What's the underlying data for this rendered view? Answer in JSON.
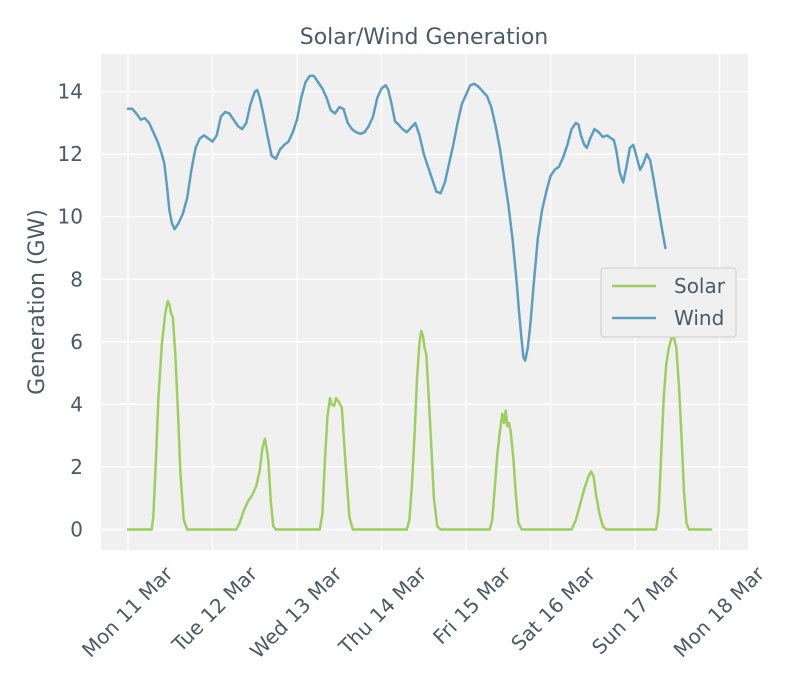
{
  "chart_data": {
    "type": "line",
    "title": "Solar/Wind Generation",
    "xlabel": "",
    "ylabel": "Generation (GW)",
    "xlim": [
      -0.3,
      7.4
    ],
    "ylim": [
      -0.7,
      15.2
    ],
    "yticks": [
      0,
      2,
      4,
      6,
      8,
      10,
      12,
      14
    ],
    "xticks": [
      {
        "x": 0,
        "label": "Mon 11 Mar"
      },
      {
        "x": 1,
        "label": "Tue 12 Mar"
      },
      {
        "x": 2,
        "label": "Wed 13 Mar"
      },
      {
        "x": 3,
        "label": "Thu 14 Mar"
      },
      {
        "x": 4,
        "label": "Fri 15 Mar"
      },
      {
        "x": 5,
        "label": "Sat 16 Mar"
      },
      {
        "x": 6,
        "label": "Sun 17 Mar"
      },
      {
        "x": 7,
        "label": "Mon 18 Mar"
      }
    ],
    "grid": true,
    "legend_position": "center-right",
    "series": [
      {
        "name": "Solar",
        "color": "#9ccf5e",
        "points": [
          [
            0,
            0
          ],
          [
            0.28,
            0
          ],
          [
            0.3,
            0.4
          ],
          [
            0.33,
            2.2
          ],
          [
            0.36,
            4.2
          ],
          [
            0.4,
            5.9
          ],
          [
            0.44,
            6.9
          ],
          [
            0.47,
            7.3
          ],
          [
            0.49,
            7.2
          ],
          [
            0.51,
            6.9
          ],
          [
            0.53,
            6.8
          ],
          [
            0.56,
            5.6
          ],
          [
            0.59,
            3.8
          ],
          [
            0.62,
            1.8
          ],
          [
            0.66,
            0.3
          ],
          [
            0.7,
            0
          ],
          [
            1.28,
            0
          ],
          [
            1.32,
            0.2
          ],
          [
            1.37,
            0.6
          ],
          [
            1.42,
            0.9
          ],
          [
            1.47,
            1.1
          ],
          [
            1.52,
            1.4
          ],
          [
            1.56,
            1.9
          ],
          [
            1.59,
            2.6
          ],
          [
            1.62,
            2.9
          ],
          [
            1.64,
            2.6
          ],
          [
            1.66,
            2.2
          ],
          [
            1.69,
            0.9
          ],
          [
            1.72,
            0.1
          ],
          [
            1.75,
            0
          ],
          [
            2.27,
            0
          ],
          [
            2.3,
            0.5
          ],
          [
            2.33,
            2.2
          ],
          [
            2.36,
            3.6
          ],
          [
            2.39,
            4.2
          ],
          [
            2.41,
            4.0
          ],
          [
            2.44,
            3.95
          ],
          [
            2.46,
            4.2
          ],
          [
            2.49,
            4.1
          ],
          [
            2.53,
            3.9
          ],
          [
            2.56,
            2.7
          ],
          [
            2.59,
            1.5
          ],
          [
            2.62,
            0.4
          ],
          [
            2.66,
            0
          ],
          [
            3.3,
            0
          ],
          [
            3.33,
            0.3
          ],
          [
            3.36,
            1.4
          ],
          [
            3.39,
            3.0
          ],
          [
            3.42,
            4.8
          ],
          [
            3.45,
            6.0
          ],
          [
            3.47,
            6.35
          ],
          [
            3.49,
            6.2
          ],
          [
            3.51,
            5.8
          ],
          [
            3.53,
            5.6
          ],
          [
            3.56,
            4.2
          ],
          [
            3.59,
            2.6
          ],
          [
            3.62,
            1.0
          ],
          [
            3.66,
            0.1
          ],
          [
            3.7,
            0
          ],
          [
            4.28,
            0
          ],
          [
            4.31,
            0.3
          ],
          [
            4.34,
            1.3
          ],
          [
            4.37,
            2.4
          ],
          [
            4.4,
            3.1
          ],
          [
            4.43,
            3.7
          ],
          [
            4.45,
            3.4
          ],
          [
            4.47,
            3.8
          ],
          [
            4.49,
            3.3
          ],
          [
            4.51,
            3.4
          ],
          [
            4.53,
            3.1
          ],
          [
            4.56,
            2.3
          ],
          [
            4.59,
            1.1
          ],
          [
            4.62,
            0.2
          ],
          [
            4.66,
            0
          ],
          [
            5.25,
            0
          ],
          [
            5.3,
            0.3
          ],
          [
            5.35,
            0.8
          ],
          [
            5.4,
            1.3
          ],
          [
            5.45,
            1.7
          ],
          [
            5.48,
            1.85
          ],
          [
            5.51,
            1.7
          ],
          [
            5.54,
            1.1
          ],
          [
            5.58,
            0.5
          ],
          [
            5.62,
            0.1
          ],
          [
            5.66,
            0
          ],
          [
            6.25,
            0
          ],
          [
            6.28,
            0.6
          ],
          [
            6.31,
            2.4
          ],
          [
            6.34,
            4.2
          ],
          [
            6.37,
            5.3
          ],
          [
            6.4,
            5.8
          ],
          [
            6.43,
            6.1
          ],
          [
            6.46,
            6.15
          ],
          [
            6.49,
            5.8
          ],
          [
            6.52,
            4.6
          ],
          [
            6.55,
            3.0
          ],
          [
            6.58,
            1.2
          ],
          [
            6.61,
            0.2
          ],
          [
            6.64,
            0
          ],
          [
            6.9,
            0
          ]
        ]
      },
      {
        "name": "Wind",
        "color": "#5b9ec1",
        "points": [
          [
            0,
            13.45
          ],
          [
            0.05,
            13.45
          ],
          [
            0.1,
            13.3
          ],
          [
            0.15,
            13.1
          ],
          [
            0.2,
            13.15
          ],
          [
            0.25,
            13.0
          ],
          [
            0.3,
            12.7
          ],
          [
            0.35,
            12.4
          ],
          [
            0.4,
            12.0
          ],
          [
            0.43,
            11.7
          ],
          [
            0.46,
            11.0
          ],
          [
            0.49,
            10.2
          ],
          [
            0.52,
            9.8
          ],
          [
            0.55,
            9.6
          ],
          [
            0.6,
            9.8
          ],
          [
            0.65,
            10.1
          ],
          [
            0.7,
            10.6
          ],
          [
            0.75,
            11.5
          ],
          [
            0.8,
            12.2
          ],
          [
            0.85,
            12.5
          ],
          [
            0.9,
            12.6
          ],
          [
            0.95,
            12.5
          ],
          [
            1.0,
            12.4
          ],
          [
            1.05,
            12.6
          ],
          [
            1.1,
            13.2
          ],
          [
            1.15,
            13.35
          ],
          [
            1.2,
            13.3
          ],
          [
            1.25,
            13.1
          ],
          [
            1.3,
            12.9
          ],
          [
            1.35,
            12.8
          ],
          [
            1.4,
            13.0
          ],
          [
            1.45,
            13.6
          ],
          [
            1.5,
            14.0
          ],
          [
            1.53,
            14.05
          ],
          [
            1.56,
            13.8
          ],
          [
            1.6,
            13.3
          ],
          [
            1.65,
            12.6
          ],
          [
            1.7,
            11.95
          ],
          [
            1.75,
            11.85
          ],
          [
            1.8,
            12.15
          ],
          [
            1.85,
            12.3
          ],
          [
            1.9,
            12.4
          ],
          [
            1.95,
            12.7
          ],
          [
            2.0,
            13.1
          ],
          [
            2.05,
            13.8
          ],
          [
            2.1,
            14.3
          ],
          [
            2.15,
            14.5
          ],
          [
            2.2,
            14.5
          ],
          [
            2.25,
            14.3
          ],
          [
            2.3,
            14.1
          ],
          [
            2.35,
            13.8
          ],
          [
            2.4,
            13.4
          ],
          [
            2.45,
            13.3
          ],
          [
            2.5,
            13.5
          ],
          [
            2.55,
            13.45
          ],
          [
            2.6,
            13.0
          ],
          [
            2.65,
            12.8
          ],
          [
            2.7,
            12.7
          ],
          [
            2.75,
            12.65
          ],
          [
            2.8,
            12.7
          ],
          [
            2.85,
            12.9
          ],
          [
            2.9,
            13.2
          ],
          [
            2.95,
            13.8
          ],
          [
            3.0,
            14.1
          ],
          [
            3.05,
            14.2
          ],
          [
            3.08,
            14.05
          ],
          [
            3.12,
            13.6
          ],
          [
            3.16,
            13.05
          ],
          [
            3.2,
            12.95
          ],
          [
            3.25,
            12.8
          ],
          [
            3.3,
            12.7
          ],
          [
            3.35,
            12.85
          ],
          [
            3.4,
            13.0
          ],
          [
            3.45,
            12.6
          ],
          [
            3.5,
            12.0
          ],
          [
            3.55,
            11.6
          ],
          [
            3.6,
            11.2
          ],
          [
            3.65,
            10.8
          ],
          [
            3.7,
            10.75
          ],
          [
            3.75,
            11.1
          ],
          [
            3.8,
            11.7
          ],
          [
            3.85,
            12.3
          ],
          [
            3.9,
            13.0
          ],
          [
            3.95,
            13.6
          ],
          [
            4.0,
            13.9
          ],
          [
            4.05,
            14.2
          ],
          [
            4.1,
            14.25
          ],
          [
            4.15,
            14.15
          ],
          [
            4.2,
            14.0
          ],
          [
            4.25,
            13.85
          ],
          [
            4.3,
            13.5
          ],
          [
            4.35,
            12.9
          ],
          [
            4.4,
            12.2
          ],
          [
            4.45,
            11.3
          ],
          [
            4.5,
            10.4
          ],
          [
            4.55,
            9.3
          ],
          [
            4.6,
            7.9
          ],
          [
            4.63,
            6.9
          ],
          [
            4.66,
            6.0
          ],
          [
            4.68,
            5.5
          ],
          [
            4.7,
            5.4
          ],
          [
            4.73,
            5.8
          ],
          [
            4.76,
            6.5
          ],
          [
            4.8,
            7.8
          ],
          [
            4.85,
            9.3
          ],
          [
            4.9,
            10.2
          ],
          [
            4.95,
            10.8
          ],
          [
            5.0,
            11.3
          ],
          [
            5.05,
            11.5
          ],
          [
            5.1,
            11.6
          ],
          [
            5.15,
            11.9
          ],
          [
            5.2,
            12.3
          ],
          [
            5.25,
            12.8
          ],
          [
            5.3,
            13.0
          ],
          [
            5.33,
            12.95
          ],
          [
            5.36,
            12.6
          ],
          [
            5.4,
            12.3
          ],
          [
            5.43,
            12.2
          ],
          [
            5.47,
            12.5
          ],
          [
            5.52,
            12.8
          ],
          [
            5.57,
            12.7
          ],
          [
            5.62,
            12.55
          ],
          [
            5.67,
            12.6
          ],
          [
            5.72,
            12.5
          ],
          [
            5.75,
            12.45
          ],
          [
            5.78,
            12.1
          ],
          [
            5.82,
            11.4
          ],
          [
            5.86,
            11.1
          ],
          [
            5.9,
            11.6
          ],
          [
            5.94,
            12.2
          ],
          [
            5.98,
            12.3
          ],
          [
            6.02,
            11.9
          ],
          [
            6.06,
            11.5
          ],
          [
            6.1,
            11.7
          ],
          [
            6.14,
            12.0
          ],
          [
            6.18,
            11.8
          ],
          [
            6.22,
            11.2
          ],
          [
            6.27,
            10.4
          ],
          [
            6.32,
            9.6
          ],
          [
            6.36,
            9.0
          ]
        ]
      }
    ]
  }
}
